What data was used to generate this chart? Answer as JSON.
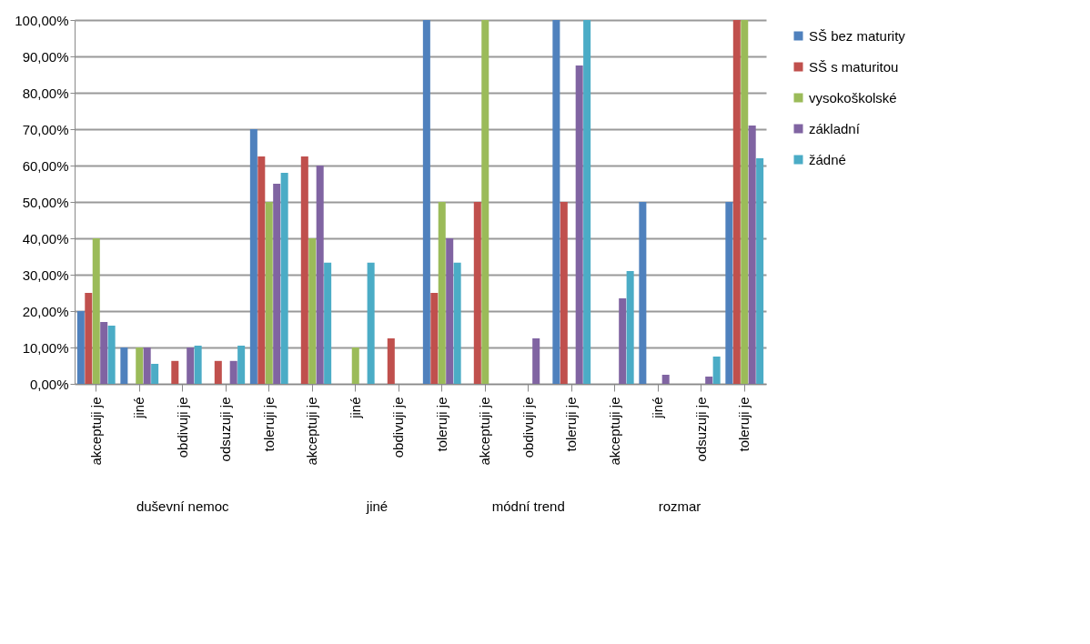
{
  "chart_data": {
    "type": "bar",
    "categories": [
      "akceptuji je",
      "jiné",
      "obdivuji je",
      "odsuzuji je",
      "toleruji je",
      "akceptuji je",
      "jiné",
      "obdivuji je",
      "toleruji je",
      "akceptuji je",
      "obdivuji je",
      "toleruji je",
      "akceptuji je",
      "jiné",
      "odsuzuji je",
      "toleruji je"
    ],
    "annotations": [
      "duševní nemoc",
      "jiné",
      "módní trend",
      "rozmar"
    ],
    "series": [
      {
        "name": "SŠ bez maturity",
        "color": "#4f81bd",
        "values": [
          20,
          10,
          0,
          0,
          70,
          0,
          0,
          0,
          100,
          0,
          0,
          100,
          0,
          50,
          0,
          50
        ]
      },
      {
        "name": "SŠ s maturitou",
        "color": "#c0504d",
        "values": [
          25,
          0,
          6.3,
          6.3,
          62.5,
          62.5,
          0,
          12.5,
          25,
          50,
          0,
          50,
          0,
          0,
          0,
          100
        ]
      },
      {
        "name": "vysokoškolské",
        "color": "#9bbb59",
        "values": [
          40,
          10,
          0,
          0,
          50,
          40,
          10,
          0,
          50,
          100,
          0,
          0,
          0,
          0,
          0,
          100
        ]
      },
      {
        "name": "základní",
        "color": "#8064a2",
        "values": [
          17,
          10,
          10,
          6.3,
          55,
          60,
          0,
          0,
          40,
          0,
          12.5,
          87.5,
          23.5,
          2.5,
          2,
          71
        ]
      },
      {
        "name": "žádné",
        "color": "#4bacc6",
        "values": [
          16,
          5.5,
          10.5,
          10.5,
          58,
          33.3,
          33.3,
          0,
          33.3,
          0,
          0,
          100,
          31,
          0,
          7.5,
          62
        ]
      }
    ],
    "ylim": [
      0,
      100
    ],
    "yticks": [
      {
        "value": 0,
        "label": "0,00%"
      },
      {
        "value": 10,
        "label": "10,00%"
      },
      {
        "value": 20,
        "label": "20,00%"
      },
      {
        "value": 30,
        "label": "30,00%"
      },
      {
        "value": 40,
        "label": "40,00%"
      },
      {
        "value": 50,
        "label": "50,00%"
      },
      {
        "value": 60,
        "label": "60,00%"
      },
      {
        "value": 70,
        "label": "70,00%"
      },
      {
        "value": 80,
        "label": "80,00%"
      },
      {
        "value": 90,
        "label": "90,00%"
      },
      {
        "value": 100,
        "label": "100,00%"
      }
    ],
    "grid": "y",
    "legend": "right"
  }
}
